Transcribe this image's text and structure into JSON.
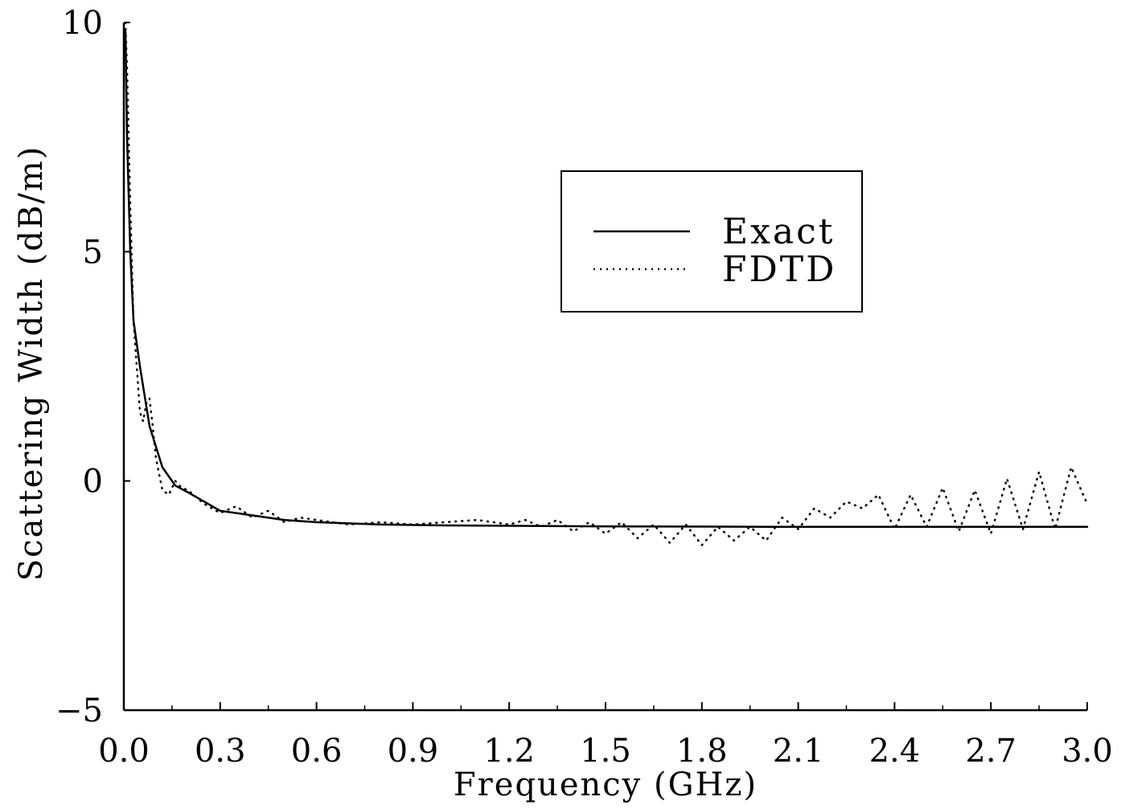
{
  "chart_data": {
    "type": "line",
    "title": "",
    "xlabel": "Frequency (GHz)",
    "ylabel": "Scattering Width (dB/m)",
    "xlim": [
      0.0,
      3.0
    ],
    "ylim": [
      -5,
      10
    ],
    "x_ticks": [
      0.0,
      0.3,
      0.6,
      0.9,
      1.2,
      1.5,
      1.8,
      2.1,
      2.4,
      2.7,
      3.0
    ],
    "x_tick_labels": [
      "0.0",
      "0.3",
      "0.6",
      "0.9",
      "1.2",
      "1.5",
      "1.8",
      "2.1",
      "2.4",
      "2.7",
      "3.0"
    ],
    "y_ticks": [
      -5,
      0,
      5,
      10
    ],
    "y_tick_labels": [
      "−5",
      "0",
      "5",
      "10"
    ],
    "grid": false,
    "legend_position": "top-right",
    "series": [
      {
        "name": "Exact",
        "style": "solid",
        "x": [
          0.005,
          0.01,
          0.02,
          0.03,
          0.05,
          0.08,
          0.12,
          0.16,
          0.2,
          0.25,
          0.3,
          0.4,
          0.5,
          0.6,
          0.8,
          1.0,
          1.5,
          2.0,
          2.5,
          3.0
        ],
        "y": [
          9.8,
          7.5,
          5.0,
          3.5,
          2.5,
          1.2,
          0.3,
          -0.1,
          -0.25,
          -0.45,
          -0.65,
          -0.75,
          -0.85,
          -0.9,
          -0.95,
          -0.97,
          -0.99,
          -1.0,
          -1.0,
          -1.0
        ]
      },
      {
        "name": "FDTD",
        "style": "dotted",
        "x": [
          0.005,
          0.01,
          0.02,
          0.03,
          0.04,
          0.05,
          0.06,
          0.07,
          0.08,
          0.09,
          0.1,
          0.12,
          0.14,
          0.16,
          0.18,
          0.2,
          0.25,
          0.3,
          0.35,
          0.4,
          0.45,
          0.5,
          0.55,
          0.6,
          0.7,
          0.8,
          0.9,
          1.0,
          1.1,
          1.2,
          1.25,
          1.3,
          1.35,
          1.4,
          1.45,
          1.5,
          1.55,
          1.6,
          1.65,
          1.7,
          1.75,
          1.8,
          1.85,
          1.9,
          1.95,
          2.0,
          2.05,
          2.1,
          2.15,
          2.2,
          2.25,
          2.3,
          2.35,
          2.4,
          2.45,
          2.5,
          2.55,
          2.6,
          2.65,
          2.7,
          2.75,
          2.8,
          2.85,
          2.9,
          2.95,
          3.0
        ],
        "y": [
          10.0,
          9.0,
          6.0,
          3.5,
          2.5,
          1.5,
          1.3,
          1.7,
          1.8,
          1.2,
          0.5,
          -0.2,
          -0.3,
          0.0,
          -0.15,
          -0.2,
          -0.5,
          -0.7,
          -0.55,
          -0.8,
          -0.65,
          -0.9,
          -0.8,
          -0.85,
          -0.95,
          -0.9,
          -0.95,
          -0.9,
          -0.85,
          -0.95,
          -0.85,
          -1.0,
          -0.85,
          -1.1,
          -0.9,
          -1.15,
          -0.9,
          -1.25,
          -0.95,
          -1.35,
          -0.95,
          -1.4,
          -1.0,
          -1.3,
          -1.0,
          -1.3,
          -0.8,
          -1.05,
          -0.6,
          -0.8,
          -0.45,
          -0.6,
          -0.3,
          -1.05,
          -0.3,
          -1.0,
          -0.15,
          -1.1,
          -0.2,
          -1.15,
          0.05,
          -1.05,
          0.2,
          -1.05,
          0.3,
          -0.5
        ]
      }
    ]
  }
}
